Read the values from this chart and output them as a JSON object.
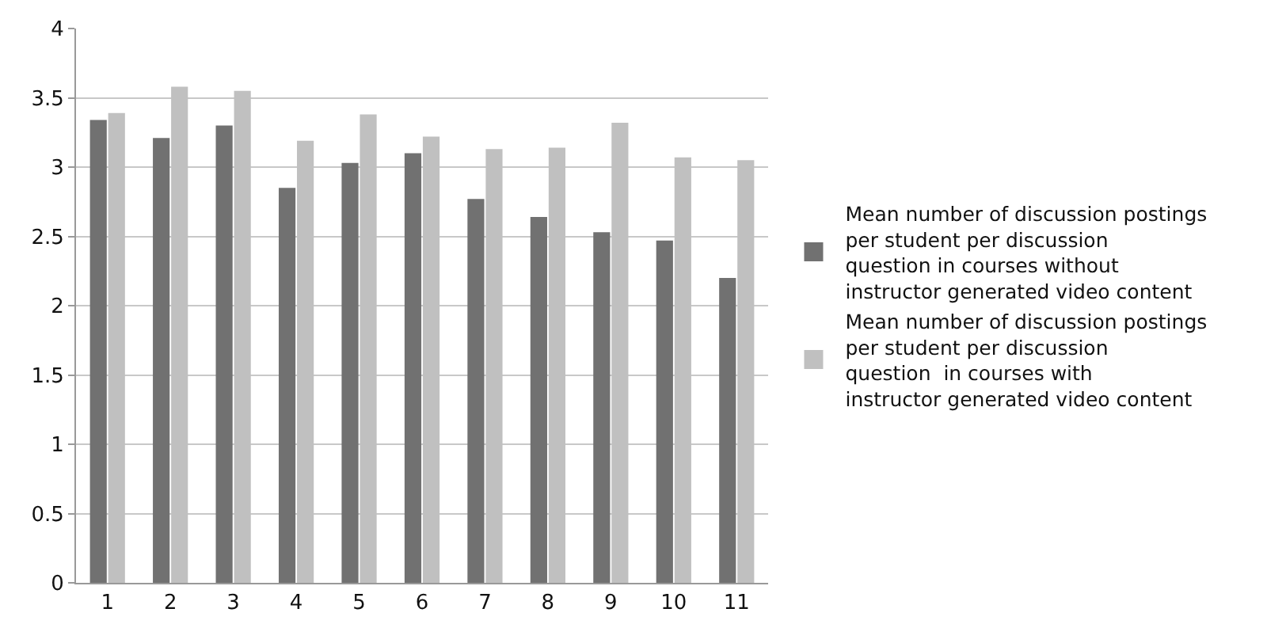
{
  "chart_data": {
    "type": "bar",
    "categories": [
      "1",
      "2",
      "3",
      "4",
      "5",
      "6",
      "7",
      "8",
      "9",
      "10",
      "11"
    ],
    "series": [
      {
        "name": "Mean number of discussion postings per student per discussion question in courses without instructor generated video content",
        "color": "#717171",
        "values": [
          3.34,
          3.21,
          3.3,
          2.85,
          3.03,
          3.1,
          2.77,
          2.64,
          2.53,
          2.47,
          2.2
        ]
      },
      {
        "name": "Mean number of discussion postings per student per discussion question  in courses with instructor generated video content",
        "color": "#c0c0c0",
        "values": [
          3.39,
          3.58,
          3.55,
          3.19,
          3.38,
          3.22,
          3.13,
          3.14,
          3.32,
          3.07,
          3.05
        ]
      }
    ],
    "ylim": [
      0,
      4
    ],
    "yticks": [
      0,
      0.5,
      1,
      1.5,
      2,
      2.5,
      3,
      3.5,
      4
    ],
    "grid": "y",
    "legend": "right"
  }
}
